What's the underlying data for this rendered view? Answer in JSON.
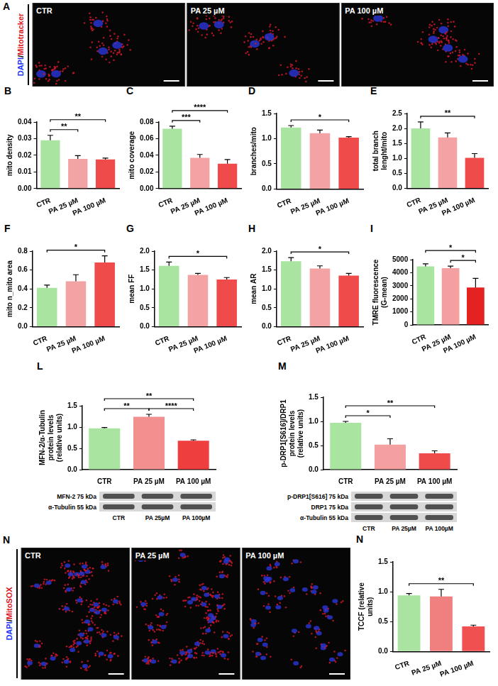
{
  "image_panels": [
    {
      "panel": "A",
      "channel_label": [
        {
          "text": "DAPI",
          "color": "#2233ff"
        },
        {
          "text": "/",
          "color": "#000000"
        },
        {
          "text": "Mitotracker",
          "color": "#e01020"
        }
      ],
      "panels": [
        "CTR",
        "PA 25 µM",
        "PA 100 µM"
      ]
    },
    {
      "panel": "N",
      "channel_label": [
        {
          "text": "DAPI",
          "color": "#2233ff"
        },
        {
          "text": "/",
          "color": "#000000"
        },
        {
          "text": "MitoSOX",
          "color": "#e01020"
        }
      ],
      "panels": [
        "CTR",
        "PA 25 µM",
        "PA 100 µM"
      ]
    }
  ],
  "chart_data": [
    {
      "panel": "B",
      "type": "bar",
      "y_label": "mito density",
      "categories": [
        "CTR",
        "PA 25 µM",
        "PA 100 µM"
      ],
      "values": [
        0.029,
        0.0178,
        0.0175
      ],
      "errors": [
        0.003,
        0.002,
        0.0008
      ],
      "colors": [
        "#a9e4a0",
        "#f3a3a3",
        "#ef4b4b"
      ],
      "ylim": [
        0,
        0.04
      ],
      "yticks": [
        {
          "value": 0,
          "label": "0.00"
        },
        0.01,
        0.02,
        0.03,
        0.04
      ],
      "significance": [
        {
          "from": "CTR",
          "to": "PA 25 µM",
          "label": "**"
        },
        {
          "from": "CTR",
          "to": "PA 100 µM",
          "label": "**"
        }
      ]
    },
    {
      "panel": "C",
      "type": "bar",
      "y_label": "mito coverage",
      "categories": [
        "CTR",
        "PA 25 µM",
        "PA 100 µM"
      ],
      "values": [
        0.072,
        0.037,
        0.03
      ],
      "errors": [
        0.003,
        0.004,
        0.005
      ],
      "colors": [
        "#a9e4a0",
        "#f3a3a3",
        "#ef4b4b"
      ],
      "ylim": [
        0,
        0.08
      ],
      "yticks": [
        {
          "value": 0,
          "label": "0.00"
        },
        0.02,
        0.04,
        0.06,
        0.08
      ],
      "significance": [
        {
          "from": "CTR",
          "to": "PA 25 µM",
          "label": "***"
        },
        {
          "from": "CTR",
          "to": "PA 100 µM",
          "label": "****"
        }
      ]
    },
    {
      "panel": "D",
      "type": "bar",
      "y_label": "branches/mito",
      "categories": [
        "CTR",
        "PA 25 µM",
        "PA 100 µM"
      ],
      "values": [
        1.22,
        1.11,
        1.02
      ],
      "errors": [
        0.04,
        0.06,
        0.02
      ],
      "colors": [
        "#a9e4a0",
        "#f3a3a3",
        "#ef4b4b"
      ],
      "ylim": [
        0,
        1.5
      ],
      "yticks": [
        {
          "value": 0,
          "label": "0.0"
        },
        0.5,
        {
          "value": 1,
          "label": "1.0"
        },
        1.5
      ],
      "significance": [
        {
          "from": "CTR",
          "to": "PA 100 µM",
          "label": "*"
        }
      ]
    },
    {
      "panel": "E",
      "type": "bar",
      "y_label": "total branch lenght/mito",
      "categories": [
        "CTR",
        "PA 25 µM",
        "PA 100 µM"
      ],
      "values": [
        2.0,
        1.7,
        1.02
      ],
      "errors": [
        0.22,
        0.15,
        0.14
      ],
      "colors": [
        "#a9e4a0",
        "#f3a3a3",
        "#ef4b4b"
      ],
      "ylim": [
        0,
        2.5
      ],
      "yticks": [
        {
          "value": 0,
          "label": "0.0"
        },
        0.5,
        {
          "value": 1,
          "label": "1.0"
        },
        1.5,
        {
          "value": 2,
          "label": "2.0"
        },
        2.5
      ],
      "significance": [
        {
          "from": "CTR",
          "to": "PA 100 µM",
          "label": "**"
        }
      ]
    },
    {
      "panel": "F",
      "type": "bar",
      "y_label": "mito n_mito area",
      "categories": [
        "CTR",
        "PA 25 µM",
        "PA 100 µM"
      ],
      "values": [
        0.41,
        0.48,
        0.68
      ],
      "errors": [
        0.03,
        0.07,
        0.07
      ],
      "colors": [
        "#a9e4a0",
        "#f3a3a3",
        "#ef4b4b"
      ],
      "ylim": [
        0,
        0.8
      ],
      "yticks": [
        {
          "value": 0,
          "label": "0.0"
        },
        0.2,
        0.4,
        0.6,
        0.8
      ],
      "significance": [
        {
          "from": "CTR",
          "to": "PA 100 µM",
          "label": "*"
        }
      ]
    },
    {
      "panel": "G",
      "type": "bar",
      "y_label": "mean FF",
      "categories": [
        "CTR",
        "PA 25 µM",
        "PA 100 µM"
      ],
      "values": [
        1.61,
        1.37,
        1.25
      ],
      "errors": [
        0.1,
        0.04,
        0.05
      ],
      "colors": [
        "#a9e4a0",
        "#f3a3a3",
        "#ef4b4b"
      ],
      "ylim": [
        0,
        2
      ],
      "yticks": [
        {
          "value": 0,
          "label": "0.0"
        },
        0.5,
        {
          "value": 1,
          "label": "1.0"
        },
        1.5,
        {
          "value": 2,
          "label": "2.0"
        }
      ],
      "significance": [
        {
          "from": "CTR",
          "to": "PA 100 µM",
          "label": "*"
        }
      ]
    },
    {
      "panel": "H",
      "type": "bar",
      "y_label": "mean AR",
      "categories": [
        "CTR",
        "PA 25 µM",
        "PA 100 µM"
      ],
      "values": [
        1.73,
        1.54,
        1.35
      ],
      "errors": [
        0.1,
        0.07,
        0.06
      ],
      "colors": [
        "#a9e4a0",
        "#f3a3a3",
        "#ef4b4b"
      ],
      "ylim": [
        0,
        2
      ],
      "yticks": [
        {
          "value": 0,
          "label": "0.0"
        },
        0.5,
        {
          "value": 1,
          "label": "1.0"
        },
        1.5,
        {
          "value": 2,
          "label": "2.0"
        }
      ],
      "significance": [
        {
          "from": "CTR",
          "to": "PA 100 µM",
          "label": "*"
        }
      ]
    },
    {
      "panel": "I",
      "type": "bar",
      "y_label": "TMRE fluorescence (G-mean)",
      "categories": [
        "CTR",
        "PA 25 µM",
        "PA 100 µM"
      ],
      "values": [
        4480,
        4350,
        2870
      ],
      "errors": [
        200,
        150,
        700
      ],
      "colors": [
        "#a9e4a0",
        "#f4a0a0",
        "#e52222"
      ],
      "ylim": [
        0,
        5000
      ],
      "yticks": [
        0,
        1000,
        2000,
        3000,
        4000,
        5000
      ],
      "significance": [
        {
          "from": "PA 25 µM",
          "to": "PA 100 µM",
          "label": "*"
        },
        {
          "from": "CTR",
          "to": "PA 100 µM",
          "label": "*"
        }
      ]
    },
    {
      "panel": "L",
      "type": "bar",
      "y_label": "MFN-2/α-Tubulin protein levels (relative units)",
      "categories": [
        "CTR",
        "PA 25 µM",
        "PA 100 µM"
      ],
      "values": [
        0.97,
        1.24,
        0.68
      ],
      "errors": [
        0.02,
        0.06,
        0.02
      ],
      "colors": [
        "#a9e4a0",
        "#f28f8f",
        "#ee3e3e"
      ],
      "ylim": [
        0,
        1.5
      ],
      "yticks": [
        {
          "value": 0,
          "label": "0.0"
        },
        0.5,
        {
          "value": 1,
          "label": "1.0"
        },
        1.5
      ],
      "significance": [
        {
          "from": "CTR",
          "to": "PA 25 µM",
          "label": "**"
        },
        {
          "from": "PA 25 µM",
          "to": "PA 100 µM",
          "label": "****"
        },
        {
          "from": "CTR",
          "to": "PA 100 µM",
          "label": "**"
        }
      ]
    },
    {
      "panel": "M",
      "type": "bar",
      "y_label": "p-DRP1[S616]/DRP1 protein levels (relative units)",
      "categories": [
        "CTR",
        "PA 25 µM",
        "PA 100 µM"
      ],
      "values": [
        0.97,
        0.52,
        0.34
      ],
      "errors": [
        0.03,
        0.12,
        0.05
      ],
      "colors": [
        "#a9e4a0",
        "#f4a0a0",
        "#ef4b4b"
      ],
      "ylim": [
        0,
        1.5
      ],
      "yticks": [
        {
          "value": 0,
          "label": "0.0"
        },
        0.5,
        {
          "value": 1,
          "label": "1.0"
        },
        1.5
      ],
      "significance": [
        {
          "from": "CTR",
          "to": "PA 25 µM",
          "label": "*"
        },
        {
          "from": "CTR",
          "to": "PA 100 µM",
          "label": "**"
        }
      ]
    },
    {
      "panel": "N",
      "type": "bar",
      "y_label": "TCCF (relative units)",
      "categories": [
        "CTR",
        "PA 25 µM",
        "PA 100 µM"
      ],
      "values": [
        0.94,
        0.92,
        0.42
      ],
      "errors": [
        0.03,
        0.12,
        0.02
      ],
      "colors": [
        "#a9e4a0",
        "#f07f7f",
        "#f05050"
      ],
      "ylim": [
        0,
        1.5
      ],
      "yticks": [
        {
          "value": 0,
          "label": "0.0"
        },
        0.5,
        {
          "value": 1,
          "label": "1.0"
        },
        1.5
      ],
      "significance": [
        {
          "from": "CTR",
          "to": "PA 100 µM",
          "label": "**"
        }
      ]
    }
  ],
  "blots": [
    {
      "panel": "L",
      "rows": [
        "MFN-2 75 kDa",
        "α-Tubulin 55 kDa"
      ],
      "lanes": [
        "CTR",
        "PA 25µM",
        "PA 100µM"
      ]
    },
    {
      "panel": "M",
      "rows": [
        "p-DRP1[S616] 75 kDa",
        "DRP1 75 kDa",
        "α-Tubulin 55 kDa"
      ],
      "lanes": [
        "CTR",
        "PA 25µM",
        "PA 100µM"
      ]
    }
  ]
}
